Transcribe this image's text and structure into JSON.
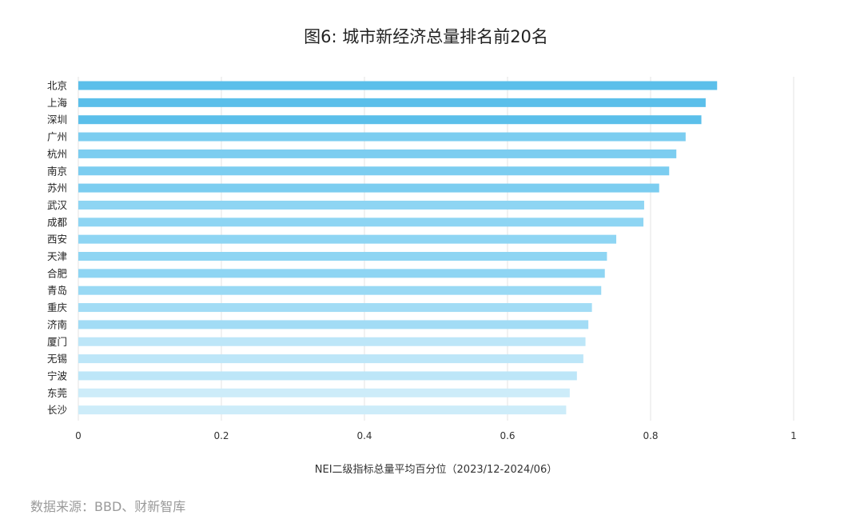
{
  "chart_data": {
    "type": "bar",
    "orientation": "horizontal",
    "title": "图6: 城市新经济总量排名前20名",
    "xlabel": "NEI二级指标总量平均百分位（2023/12-2024/06）",
    "ylabel": "",
    "xlim": [
      0,
      1
    ],
    "xticks": [
      "0",
      "0.2",
      "0.4",
      "0.6",
      "0.8",
      "1"
    ],
    "grid": true,
    "categories": [
      "北京",
      "上海",
      "深圳",
      "广州",
      "杭州",
      "南京",
      "苏州",
      "武汉",
      "成都",
      "西安",
      "天津",
      "合肥",
      "青岛",
      "重庆",
      "济南",
      "厦门",
      "无锡",
      "宁波",
      "东莞",
      "长沙"
    ],
    "values": [
      0.893,
      0.877,
      0.871,
      0.849,
      0.836,
      0.826,
      0.812,
      0.791,
      0.79,
      0.752,
      0.739,
      0.736,
      0.731,
      0.718,
      0.713,
      0.709,
      0.706,
      0.697,
      0.687,
      0.682
    ],
    "colors": [
      "#5bbfea",
      "#5bbfea",
      "#5bbfea",
      "#7ccdf0",
      "#7ccdf0",
      "#7ccdf0",
      "#7ccdf0",
      "#8ed5f3",
      "#8ed5f3",
      "#8ed5f3",
      "#8ed5f3",
      "#8ed5f3",
      "#99d9f4",
      "#a2dcf5",
      "#a2dcf5",
      "#bde6f8",
      "#bde6f8",
      "#bde6f8",
      "#cdecf9",
      "#cdecf9"
    ]
  },
  "source": "数据来源：BBD、财新智库"
}
